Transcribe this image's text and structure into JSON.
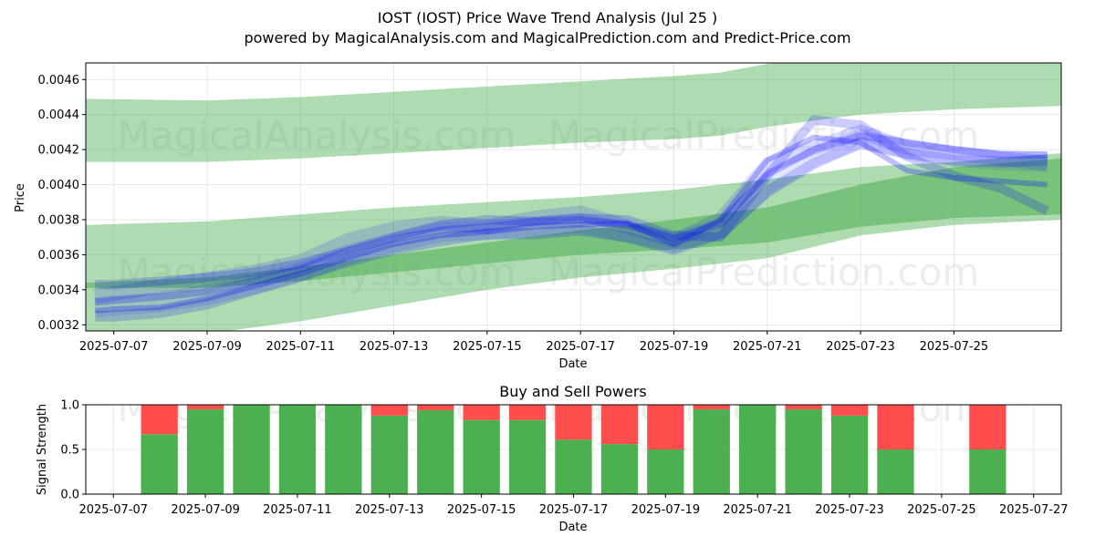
{
  "chart_data": [
    {
      "type": "area",
      "title_line1": "IOST (IOST) Price Wave Trend Analysis (Jul 25 )",
      "title_line2": "powered by MagicalAnalysis.com and MagicalPrediction.com and Predict-Price.com",
      "xlabel": "Date",
      "ylabel": "Price",
      "xlim": [
        -0.6,
        20.3
      ],
      "ylim": [
        0.003165,
        0.004695
      ],
      "x_tick_labels": [
        "2025-07-07",
        "2025-07-09",
        "2025-07-11",
        "2025-07-13",
        "2025-07-15",
        "2025-07-17",
        "2025-07-19",
        "2025-07-21",
        "2025-07-23",
        "2025-07-25"
      ],
      "x_tick_positions": [
        0,
        2,
        4,
        6,
        8,
        10,
        12,
        14,
        16,
        18
      ],
      "y_ticks": [
        0.0032,
        0.0034,
        0.0036,
        0.0038,
        0.004,
        0.0042,
        0.0044,
        0.0046
      ],
      "y_tick_labels": [
        "0.0032",
        "0.0034",
        "0.0036",
        "0.0038",
        "0.0040",
        "0.0042",
        "0.0044",
        "0.0046"
      ],
      "grid": true,
      "color_green": "#4caf50",
      "color_blue": "#0000ff",
      "green_bands": [
        {
          "x": [
            -0.6,
            2,
            4,
            6,
            8,
            10,
            12,
            13,
            14,
            16,
            18,
            20.3
          ],
          "upper": [
            0.00449,
            0.00448,
            0.0045,
            0.00453,
            0.00456,
            0.00459,
            0.00462,
            0.00464,
            0.00469,
            0.00474,
            0.00477,
            0.00476
          ],
          "lower": [
            0.00413,
            0.00413,
            0.00415,
            0.00418,
            0.00421,
            0.00424,
            0.00426,
            0.00428,
            0.00433,
            0.0044,
            0.00443,
            0.00445
          ],
          "opacity": 0.45
        },
        {
          "x": [
            -0.6,
            2,
            4,
            6,
            8,
            10,
            12,
            14,
            16,
            18,
            20.3
          ],
          "upper": [
            0.00377,
            0.00379,
            0.00383,
            0.00387,
            0.0039,
            0.00393,
            0.00397,
            0.00403,
            0.0041,
            0.00413,
            0.00418
          ],
          "lower": [
            0.00315,
            0.00315,
            0.00322,
            0.00331,
            0.0034,
            0.00347,
            0.00352,
            0.00358,
            0.00371,
            0.00377,
            0.0038
          ],
          "opacity": 0.45
        },
        {
          "x": [
            -0.6,
            2,
            4,
            6,
            8,
            10,
            12,
            14,
            16,
            18,
            20.3
          ],
          "upper": [
            0.00344,
            0.00347,
            0.00353,
            0.0036,
            0.00367,
            0.00374,
            0.0038,
            0.00387,
            0.004,
            0.0041,
            0.00415
          ],
          "lower": [
            0.00341,
            0.00341,
            0.00345,
            0.0035,
            0.00355,
            0.0036,
            0.00363,
            0.00367,
            0.00376,
            0.00381,
            0.00383
          ],
          "opacity": 0.55
        }
      ],
      "blue_series": [
        {
          "x": [
            -0.4,
            0,
            1,
            2,
            3,
            4,
            5,
            6,
            7,
            8,
            9,
            10,
            11,
            12,
            13,
            14,
            15,
            16,
            17,
            18,
            19,
            20
          ],
          "y": [
            0.0033,
            0.00331,
            0.00333,
            0.00337,
            0.00343,
            0.0035,
            0.0036,
            0.00367,
            0.00373,
            0.00374,
            0.00376,
            0.00378,
            0.00373,
            0.00367,
            0.00375,
            0.004,
            0.00416,
            0.00426,
            0.0042,
            0.00416,
            0.00414,
            0.00413
          ]
        },
        {
          "x": [
            -0.4,
            0,
            1,
            2,
            3,
            4,
            5,
            6,
            7,
            8,
            9,
            10,
            11,
            12,
            13,
            14,
            15,
            16,
            17,
            18,
            19,
            20
          ],
          "y": [
            0.00336,
            0.00338,
            0.00342,
            0.00346,
            0.0035,
            0.00356,
            0.00368,
            0.00375,
            0.00378,
            0.00376,
            0.00381,
            0.00384,
            0.00376,
            0.00368,
            0.0038,
            0.00411,
            0.00421,
            0.0043,
            0.00421,
            0.00418,
            0.00415,
            0.00412
          ]
        },
        {
          "x": [
            -0.4,
            0,
            1,
            2,
            3,
            4,
            5,
            6,
            7,
            8,
            9,
            10,
            11,
            12,
            13,
            14,
            15,
            16,
            17,
            18,
            19,
            20
          ],
          "y": [
            0.00325,
            0.00325,
            0.00327,
            0.00332,
            0.0034,
            0.00348,
            0.00356,
            0.00363,
            0.00368,
            0.00372,
            0.00372,
            0.00374,
            0.0037,
            0.00363,
            0.00372,
            0.00396,
            0.00412,
            0.00424,
            0.00418,
            0.00414,
            0.00413,
            0.00414
          ]
        },
        {
          "x": [
            -0.4,
            0,
            1,
            2,
            3,
            4,
            5,
            6,
            7,
            8,
            9,
            10,
            11,
            12,
            13,
            14,
            15,
            16,
            17,
            18,
            19,
            20
          ],
          "y": [
            0.00343,
            0.00343,
            0.00345,
            0.00347,
            0.0035,
            0.00355,
            0.00362,
            0.0037,
            0.00377,
            0.0038,
            0.00379,
            0.00381,
            0.0038,
            0.00371,
            0.0037,
            0.00405,
            0.00437,
            0.00434,
            0.00416,
            0.00405,
            0.00398,
            0.00385
          ]
        },
        {
          "x": [
            -0.4,
            0,
            1,
            2,
            3,
            4,
            5,
            6,
            7,
            8,
            9,
            10,
            11,
            12,
            13,
            14,
            15,
            16,
            17,
            18,
            19,
            20
          ],
          "y": [
            0.00333,
            0.00334,
            0.00336,
            0.00339,
            0.00345,
            0.00352,
            0.00362,
            0.00369,
            0.00374,
            0.00376,
            0.00379,
            0.0038,
            0.00377,
            0.00369,
            0.00378,
            0.00406,
            0.0042,
            0.00428,
            0.00424,
            0.0042,
            0.00417,
            0.00417
          ]
        },
        {
          "x": [
            -0.4,
            0,
            1,
            2,
            3,
            4,
            5,
            6,
            7,
            8,
            9,
            10,
            11,
            12,
            13,
            14,
            15,
            16,
            17,
            18,
            19,
            20
          ],
          "y": [
            0.00328,
            0.00329,
            0.0033,
            0.00335,
            0.00342,
            0.00349,
            0.00358,
            0.00366,
            0.00371,
            0.00373,
            0.00376,
            0.00377,
            0.00378,
            0.00366,
            0.0038,
            0.00414,
            0.00427,
            0.00424,
            0.00408,
            0.00404,
            0.00402,
            0.004
          ]
        }
      ],
      "watermarks": [
        "MagicalAnalysis.com",
        "MagicalPrediction.com"
      ]
    },
    {
      "type": "bar",
      "title": "Buy and Sell Powers",
      "xlabel": "Date",
      "ylabel": "Signal Strength",
      "xlim": [
        -0.6,
        20.6
      ],
      "ylim": [
        0,
        1
      ],
      "x_tick_labels": [
        "2025-07-07",
        "2025-07-09",
        "2025-07-11",
        "2025-07-13",
        "2025-07-15",
        "2025-07-17",
        "2025-07-19",
        "2025-07-21",
        "2025-07-23",
        "2025-07-25",
        "2025-07-27"
      ],
      "x_tick_positions": [
        0,
        2,
        4,
        6,
        8,
        10,
        12,
        14,
        16,
        18,
        20
      ],
      "y_ticks": [
        0,
        0.5,
        1
      ],
      "y_tick_labels": [
        "0.0",
        "0.5",
        "1.0"
      ],
      "color_buy": "#4caf50",
      "color_sell": "#ff4d4d",
      "bar_x": [
        1,
        2,
        3,
        4,
        5,
        6,
        7,
        8,
        9,
        10,
        11,
        12,
        13,
        14,
        15,
        16,
        17,
        19
      ],
      "buy_values": [
        0.67,
        0.95,
        1.0,
        1.0,
        1.0,
        0.88,
        0.94,
        0.83,
        0.83,
        0.61,
        0.56,
        0.5,
        0.95,
        1.0,
        0.95,
        0.88,
        0.5,
        0.5
      ],
      "sell_values": [
        0.33,
        0.05,
        0.0,
        0.0,
        0.0,
        0.12,
        0.06,
        0.17,
        0.17,
        0.39,
        0.44,
        0.5,
        0.05,
        0.0,
        0.05,
        0.12,
        0.5,
        0.5
      ],
      "watermarks": [
        "MagicalAnalysis.com",
        "MagicalPrediction.com"
      ]
    }
  ]
}
